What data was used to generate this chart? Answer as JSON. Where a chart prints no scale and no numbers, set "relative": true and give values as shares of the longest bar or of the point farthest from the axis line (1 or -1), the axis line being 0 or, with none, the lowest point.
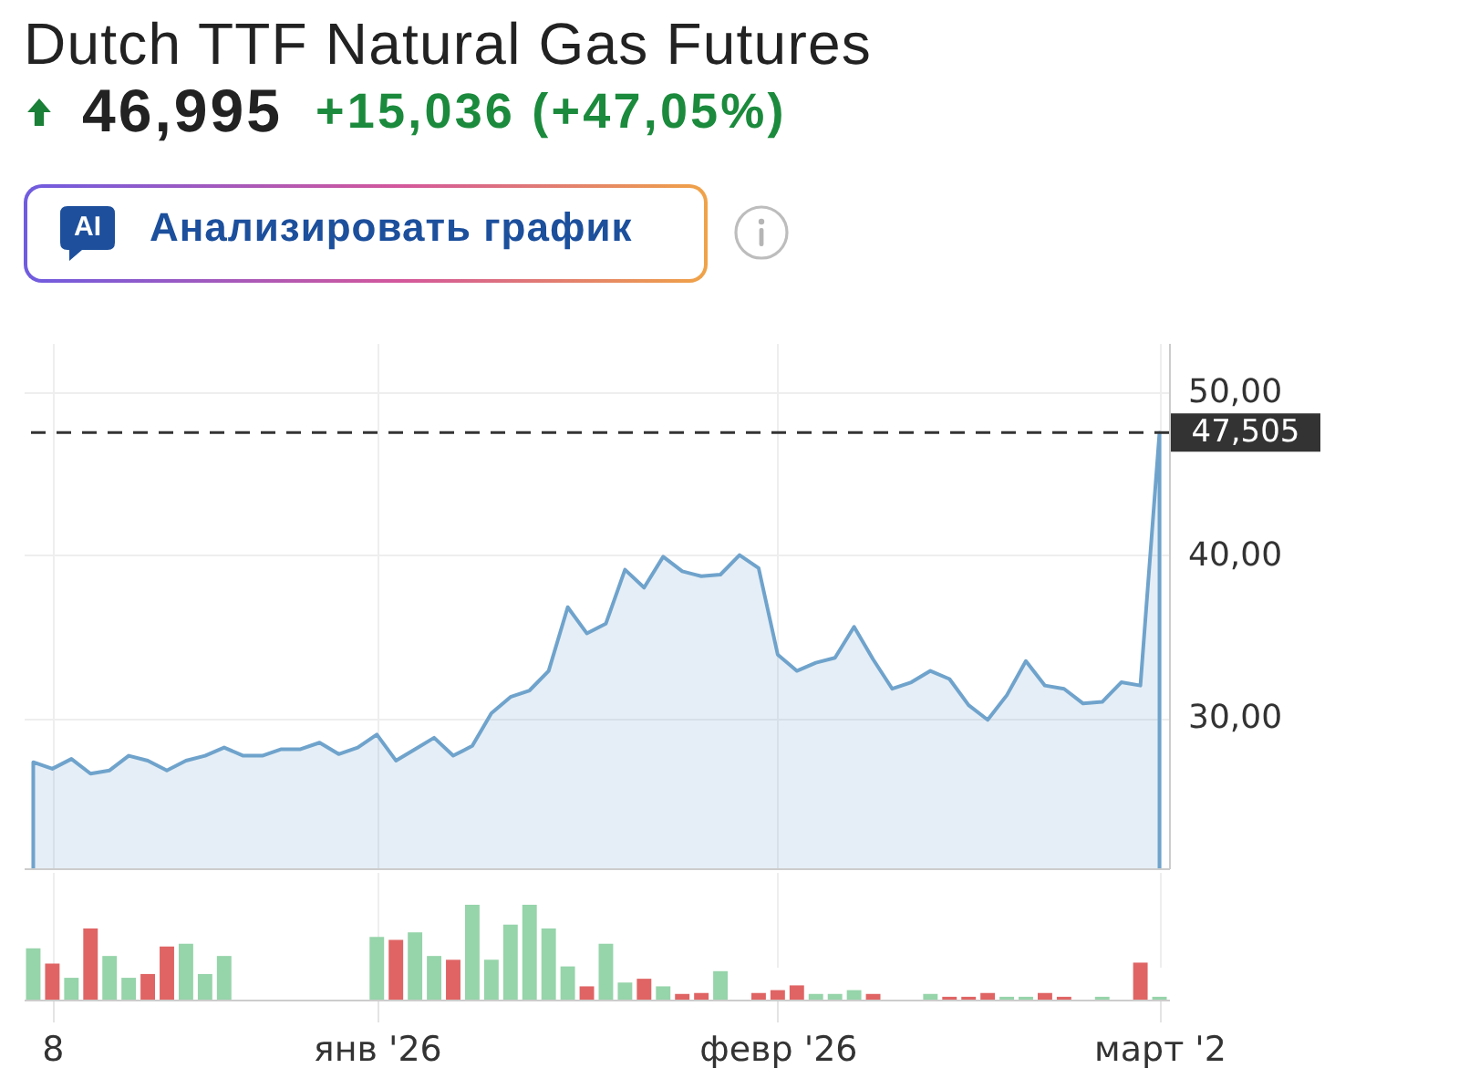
{
  "chart_data": [
    {
      "type": "area",
      "title": "Dutch TTF Natural Gas Futures",
      "subtitle": "46,995",
      "annotations": [
        "+15,036 (+47,05%)",
        "AI",
        "Анализировать график"
      ],
      "categories": [
        null,
        null,
        null,
        null,
        null,
        null,
        null,
        null,
        null,
        null,
        null,
        null,
        null,
        null,
        null,
        null,
        null,
        null,
        null,
        null,
        null,
        null,
        null,
        null,
        null,
        null,
        null,
        null,
        null,
        null,
        null,
        null,
        null,
        null,
        null,
        null,
        null,
        null,
        null,
        null,
        null,
        null,
        null,
        null,
        null,
        null,
        null,
        null,
        null,
        null,
        null,
        null,
        null,
        null,
        null,
        null,
        null,
        null,
        null,
        null
      ],
      "series": [
        {
          "color": "#6fa3cc",
          "values": [
            27.3,
            26.9,
            27.5,
            26.6,
            26.8,
            27.7,
            27.4,
            26.8,
            27.4,
            27.7,
            28.2,
            27.7,
            27.7,
            28.1,
            28.1,
            28.5,
            27.8,
            28.2,
            29.0,
            27.4,
            28.1,
            28.8,
            27.7,
            28.3,
            30.3,
            31.3,
            31.7,
            32.9,
            36.8,
            35.2,
            35.8,
            39.1,
            38.0,
            39.9,
            39.0,
            38.7,
            38.8,
            40.0,
            39.2,
            33.9,
            32.9,
            33.4,
            33.7,
            35.6,
            33.6,
            31.8,
            32.2,
            32.9,
            32.4,
            30.8,
            29.9,
            31.4,
            33.5,
            32.0,
            31.8,
            30.9,
            31.0,
            32.2,
            32.0,
            47.5
          ]
        }
      ],
      "ylim": [
        20.8,
        53
      ],
      "yticks": [
        {
          "value": 30,
          "label": "30,00"
        },
        {
          "value": 40,
          "label": "40,00"
        },
        {
          "value": 50,
          "label": "50,00"
        }
      ],
      "ref_lines": [
        {
          "axis": "y",
          "value": 47.505,
          "label": "47,505",
          "color": "#333333",
          "line_style": "dashed"
        }
      ],
      "grid": true,
      "tick_labels": "y"
    },
    {
      "type": "bar",
      "relative": true,
      "categories": [
        null,
        "8",
        null,
        null,
        null,
        null,
        null,
        null,
        null,
        null,
        null,
        null,
        null,
        null,
        null,
        null,
        null,
        null,
        "янв '26",
        null,
        null,
        null,
        null,
        null,
        null,
        null,
        null,
        null,
        null,
        null,
        null,
        null,
        null,
        null,
        null,
        null,
        null,
        null,
        null,
        "февр '26",
        null,
        null,
        null,
        null,
        null,
        null,
        null,
        null,
        null,
        null,
        null,
        null,
        null,
        null,
        null,
        null,
        null,
        null,
        null,
        "март '2"
      ],
      "values": [
        0.54,
        0.38,
        0.23,
        0.75,
        0.46,
        0.23,
        0.27,
        0.56,
        0.59,
        0.27,
        0.46,
        null,
        null,
        null,
        null,
        null,
        null,
        null,
        0.66,
        0.63,
        0.71,
        0.46,
        0.42,
        1.0,
        0.42,
        0.79,
        1.0,
        0.75,
        0.35,
        0.14,
        0.59,
        0.18,
        0.22,
        0.14,
        0.06,
        0.07,
        0.3,
        null,
        0.07,
        0.1,
        0.15,
        0.06,
        0.06,
        0.1,
        0.06,
        null,
        null,
        0.06,
        0.03,
        0.03,
        0.07,
        0.03,
        0.03,
        0.07,
        0.03,
        null,
        0.03,
        null,
        0.39,
        0.03
      ],
      "colors": [
        "#96d4aa",
        "#e06464",
        "#96d4aa",
        "#e06464",
        "#96d4aa",
        "#96d4aa",
        "#e06464",
        "#e06464",
        "#96d4aa",
        "#96d4aa",
        "#96d4aa",
        null,
        null,
        null,
        null,
        null,
        null,
        null,
        "#96d4aa",
        "#e06464",
        "#96d4aa",
        "#96d4aa",
        "#e06464",
        "#96d4aa",
        "#96d4aa",
        "#96d4aa",
        "#96d4aa",
        "#96d4aa",
        "#96d4aa",
        "#e06464",
        "#96d4aa",
        "#96d4aa",
        "#e06464",
        "#96d4aa",
        "#e06464",
        "#e06464",
        "#96d4aa",
        null,
        "#e06464",
        "#e06464",
        "#e06464",
        "#96d4aa",
        "#96d4aa",
        "#96d4aa",
        "#e06464",
        null,
        null,
        "#96d4aa",
        "#e06464",
        "#e06464",
        "#e06464",
        "#96d4aa",
        "#96d4aa",
        "#e06464",
        "#e06464",
        null,
        "#96d4aa",
        null,
        "#e06464",
        "#96d4aa"
      ],
      "grid": "x",
      "tick_labels": "x"
    }
  ]
}
